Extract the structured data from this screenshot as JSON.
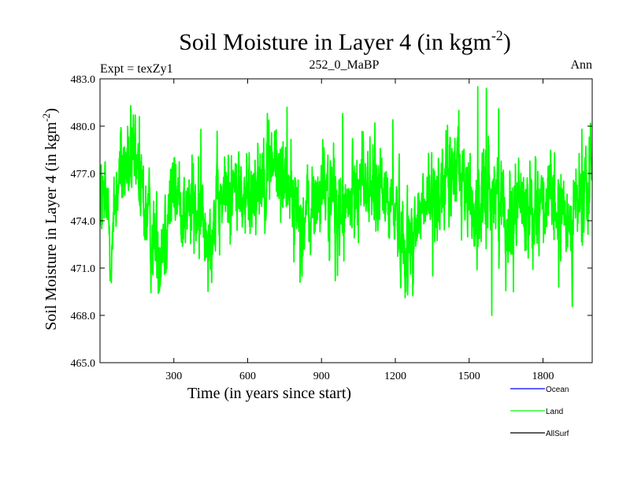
{
  "chart_data": {
    "type": "line",
    "title_main": "Soil Moisture in Layer 4 (in kgm",
    "title_exp": "-2",
    "title_close": ")",
    "subtitle_left": "Expt = texZy1",
    "subtitle_center": "252_0_MaBP",
    "subtitle_right": "Ann",
    "xlabel": "Time (in years since start)",
    "ylabel_main": "Soil Moisture in Layer 4 (in kgm",
    "ylabel_exp": "-2",
    "ylabel_close": ")",
    "xlim": [
      0,
      2000
    ],
    "ylim": [
      465.0,
      483.0
    ],
    "xticks": [
      300,
      600,
      900,
      1200,
      1500,
      1800
    ],
    "xtick_labels": [
      "300",
      "600",
      "900",
      "1200",
      "1500",
      "1800"
    ],
    "yticks": [
      465.0,
      468.0,
      471.0,
      474.0,
      477.0,
      480.0,
      483.0
    ],
    "ytick_labels": [
      "465.0",
      "468.0",
      "471.0",
      "474.0",
      "477.0",
      "480.0",
      "483.0"
    ],
    "legend_position": "bottom-right",
    "series": [
      {
        "name": "Ocean",
        "color": "#0000ff",
        "values": []
      },
      {
        "name": "Land",
        "color": "#00ff00",
        "anchors": [
          [
            0,
            475.5
          ],
          [
            30,
            474.5
          ],
          [
            50,
            472.5
          ],
          [
            70,
            476.5
          ],
          [
            100,
            477.5
          ],
          [
            150,
            477.0
          ],
          [
            175,
            475.5
          ],
          [
            200,
            473.5
          ],
          [
            240,
            472.0
          ],
          [
            270,
            474.5
          ],
          [
            300,
            476.0
          ],
          [
            350,
            474.5
          ],
          [
            380,
            475.0
          ],
          [
            420,
            474.0
          ],
          [
            450,
            473.5
          ],
          [
            490,
            475.0
          ],
          [
            520,
            476.0
          ],
          [
            560,
            476.0
          ],
          [
            600,
            475.0
          ],
          [
            630,
            476.5
          ],
          [
            660,
            477.0
          ],
          [
            700,
            478.0
          ],
          [
            730,
            476.5
          ],
          [
            760,
            477.0
          ],
          [
            790,
            475.0
          ],
          [
            820,
            474.0
          ],
          [
            860,
            474.5
          ],
          [
            900,
            476.0
          ],
          [
            940,
            475.5
          ],
          [
            980,
            474.0
          ],
          [
            1020,
            475.0
          ],
          [
            1060,
            477.0
          ],
          [
            1100,
            476.0
          ],
          [
            1150,
            475.5
          ],
          [
            1200,
            475.0
          ],
          [
            1230,
            473.0
          ],
          [
            1260,
            472.5
          ],
          [
            1300,
            474.5
          ],
          [
            1340,
            475.0
          ],
          [
            1380,
            476.0
          ],
          [
            1420,
            476.5
          ],
          [
            1460,
            477.5
          ],
          [
            1500,
            475.5
          ],
          [
            1540,
            474.0
          ],
          [
            1580,
            476.0
          ],
          [
            1620,
            475.5
          ],
          [
            1660,
            474.0
          ],
          [
            1700,
            475.5
          ],
          [
            1740,
            474.5
          ],
          [
            1780,
            475.5
          ],
          [
            1820,
            475.0
          ],
          [
            1860,
            474.5
          ],
          [
            1900,
            474.0
          ],
          [
            1940,
            475.0
          ],
          [
            1970,
            475.0
          ],
          [
            2000,
            477.0
          ]
        ]
      },
      {
        "name": "AllSurf",
        "color": "#000000",
        "values": []
      }
    ],
    "land_spikes": [
      [
        41,
        470.2
      ],
      [
        125,
        481.3
      ],
      [
        160,
        480.6
      ],
      [
        268,
        470.7
      ],
      [
        403,
        471.6
      ],
      [
        410,
        479.8
      ],
      [
        680,
        480.8
      ],
      [
        760,
        481.2
      ],
      [
        813,
        470.1
      ],
      [
        956,
        470.2
      ],
      [
        986,
        480.8
      ],
      [
        1190,
        480.4
      ],
      [
        1250,
        469.3
      ],
      [
        1352,
        470.5
      ],
      [
        1458,
        481.0
      ],
      [
        1535,
        482.5
      ],
      [
        1570,
        482.4
      ],
      [
        1592,
        468.0
      ],
      [
        1620,
        481.1
      ],
      [
        1680,
        469.5
      ],
      [
        1864,
        469.8
      ],
      [
        1958,
        479.8
      ],
      [
        1988,
        479.3
      ]
    ]
  }
}
